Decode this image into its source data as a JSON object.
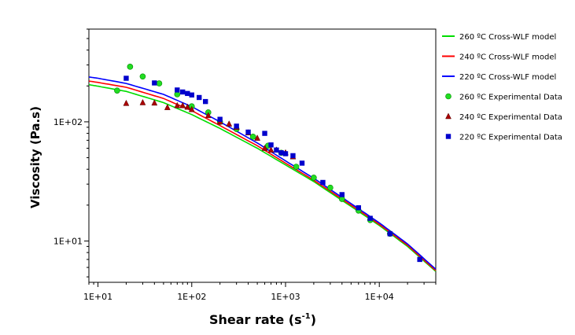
{
  "chart_data": {
    "type": "scatter",
    "xlabel": "Shear rate (s",
    "xlabel_sup": "-1",
    "xlabel_suffix": ")",
    "ylabel": "Viscosity (Pa.s)",
    "xscale": "log",
    "yscale": "log",
    "xlim": [
      8,
      40000
    ],
    "ylim": [
      4.5,
      600
    ],
    "x_ticks": [
      {
        "value": 10,
        "label": "1E+01"
      },
      {
        "value": 100,
        "label": "1E+02"
      },
      {
        "value": 1000,
        "label": "1E+03"
      },
      {
        "value": 10000,
        "label": "1E+04"
      }
    ],
    "y_ticks": [
      {
        "value": 10,
        "label": "1E+01"
      },
      {
        "value": 100,
        "label": "1E+02"
      }
    ],
    "grid": false,
    "legend_position": "right",
    "series": [
      {
        "name": "260 ºC Cross-WLF model",
        "kind": "line",
        "color": "#00dd00",
        "x": [
          8,
          10,
          20,
          50,
          100,
          200,
          500,
          1000,
          2000,
          5000,
          10000,
          20000,
          40000
        ],
        "y": [
          205,
          199,
          180,
          145,
          115,
          88,
          60,
          43.5,
          31.5,
          19.5,
          13.5,
          9.0,
          5.55
        ]
      },
      {
        "name": "240 ºC Cross-WLF model",
        "kind": "line",
        "color": "#ff0000",
        "x": [
          8,
          10,
          20,
          50,
          100,
          200,
          500,
          1000,
          2000,
          5000,
          10000,
          20000,
          40000
        ],
        "y": [
          220,
          214,
          195,
          157,
          124,
          93,
          63,
          45.0,
          32.4,
          20.0,
          13.8,
          9.2,
          5.65
        ]
      },
      {
        "name": "220 ºC Cross-WLF model",
        "kind": "line",
        "color": "#0000ff",
        "x": [
          8,
          10,
          20,
          50,
          100,
          200,
          500,
          1000,
          2000,
          5000,
          10000,
          20000,
          40000
        ],
        "y": [
          238,
          232,
          210,
          170,
          134,
          100,
          66.5,
          47.0,
          33.6,
          20.6,
          14.2,
          9.45,
          5.8
        ]
      },
      {
        "name": "260 ºC Experimental Data",
        "kind": "marker",
        "marker": "circle",
        "color": "#22dd22",
        "x": [
          16,
          22,
          30,
          45,
          70,
          100,
          150,
          200,
          300,
          450,
          650,
          900,
          1300,
          2000,
          3000,
          4000,
          6000,
          8000,
          13000
        ],
        "y": [
          183,
          290,
          240,
          210,
          170,
          135,
          120,
          100,
          87,
          75,
          63,
          55,
          42,
          34,
          28,
          22.5,
          18,
          15,
          11.5
        ]
      },
      {
        "name": "240 ºC Experimental Data",
        "kind": "marker",
        "marker": "triangle",
        "color": "#aa0000",
        "x": [
          20,
          30,
          40,
          55,
          70,
          80,
          90,
          100,
          150,
          200,
          250,
          300,
          400,
          500,
          600,
          700,
          800,
          1000,
          1200
        ],
        "y": [
          143,
          145,
          144,
          132,
          137,
          137,
          133,
          127,
          113,
          100,
          96,
          90,
          81,
          73,
          60,
          58,
          58,
          55,
          51
        ]
      },
      {
        "name": "220 ºC Experimental Data",
        "kind": "marker",
        "marker": "square",
        "color": "#0000cc",
        "x": [
          20,
          40,
          70,
          80,
          90,
          100,
          120,
          140,
          200,
          300,
          400,
          600,
          700,
          800,
          900,
          1000,
          1200,
          1500,
          2500,
          4000,
          6000,
          8000,
          13000,
          27000
        ],
        "y": [
          232,
          212,
          185,
          178,
          173,
          168,
          160,
          148,
          105,
          92,
          82,
          80,
          64,
          58,
          55,
          54,
          52,
          45,
          31,
          24.5,
          19,
          15.5,
          11.5,
          7.0
        ]
      }
    ]
  }
}
